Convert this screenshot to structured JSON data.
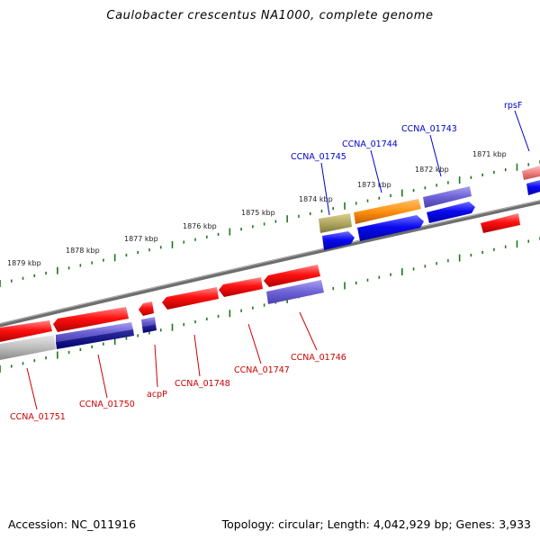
{
  "title": "Caulobacter crescentus NA1000, complete genome",
  "footer": {
    "accession": "Accession: NC_011916",
    "summary": "Topology: circular; Length: 4,042,929 bp; Genes: 3,933"
  },
  "colors": {
    "backbone": "#7a7a7a",
    "tick": "#1a7a1a",
    "forward_label": "#0000cc",
    "reverse_label": "#cc0000"
  },
  "kbp_labels": [
    "1879 kbp",
    "1878 kbp",
    "1877 kbp",
    "1876 kbp",
    "1875 kbp",
    "1874 kbp",
    "1873 kbp",
    "1872 kbp",
    "1871 kbp"
  ],
  "forward_genes": [
    "CCNA_01745",
    "CCNA_01744",
    "CCNA_01743",
    "rpsF"
  ],
  "reverse_genes": [
    "CCNA_01751",
    "CCNA_01750",
    "acpP",
    "CCNA_01748",
    "CCNA_01747",
    "CCNA_01746"
  ]
}
